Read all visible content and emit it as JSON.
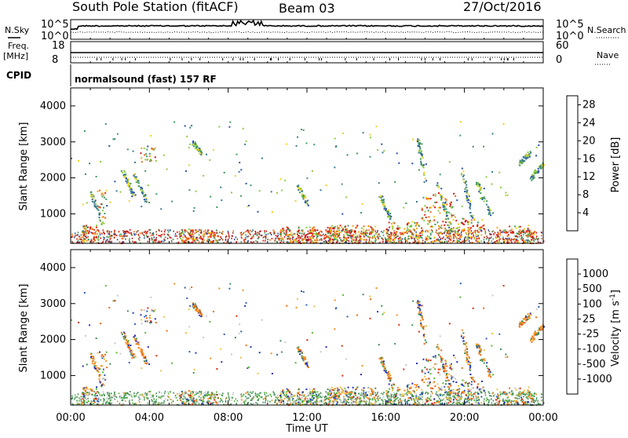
{
  "header": {
    "station": "South Pole Station (fitACF)",
    "beam": "Beam 03",
    "date": "27/Oct/2016"
  },
  "side_labels": {
    "nsky": "N.Sky",
    "nsearch": "N.Search",
    "freq": "Freq.",
    "freq_unit": "[MHz]",
    "nave": "Nave",
    "cpid": "CPID"
  },
  "top_panels": {
    "noise_ticks_left": [
      "10^5",
      "10^0"
    ],
    "noise_ticks_right": [
      "10^5",
      "10^0"
    ],
    "freq_ticks": [
      "18",
      "8"
    ],
    "nave_ticks": [
      "60",
      "0"
    ],
    "cpid_text": "normalsound (fast) 157 RF"
  },
  "chart_data": [
    {
      "type": "heatmap",
      "panel": "power",
      "xlabel": "",
      "ylabel": "Slant Range [km]",
      "x_range_hours": [
        0,
        24
      ],
      "ylim": [
        180,
        4500
      ],
      "y_ticks": [
        "1000",
        "2000",
        "3000",
        "4000"
      ],
      "colorbar": {
        "label": "Power [dB]",
        "ticks": [
          "4",
          "8",
          "12",
          "16",
          "20",
          "24",
          "28"
        ],
        "range": [
          0,
          30
        ],
        "colors": [
          "#1a1aff",
          "#2a4fa8",
          "#3a7d8f",
          "#3f9a5e",
          "#8ccc3f",
          "#f0d21e",
          "#f5a21a",
          "#f06a12",
          "#e02a0f",
          "#d40f0f"
        ]
      }
    },
    {
      "type": "heatmap",
      "panel": "velocity",
      "xlabel": "Time UT",
      "ylabel": "Slant Range [km]",
      "x_range_hours": [
        0,
        24
      ],
      "x_ticks": [
        "00:00",
        "04:00",
        "08:00",
        "12:00",
        "16:00",
        "20:00",
        "00:00"
      ],
      "ylim": [
        180,
        4500
      ],
      "y_ticks": [
        "1000",
        "2000",
        "3000",
        "4000"
      ],
      "colorbar": {
        "label": "Velocity [m s^-1]",
        "ticks": [
          "1000",
          "500",
          "100",
          "25",
          "-25",
          "-100",
          "-500",
          "-1000"
        ],
        "colors": [
          "#2233bb",
          "#2f5fb4",
          "#3f8f52",
          "#58b83a",
          "#c8c8c8",
          "#f0c040",
          "#f59020",
          "#f06a12",
          "#e02a0f"
        ]
      }
    }
  ]
}
